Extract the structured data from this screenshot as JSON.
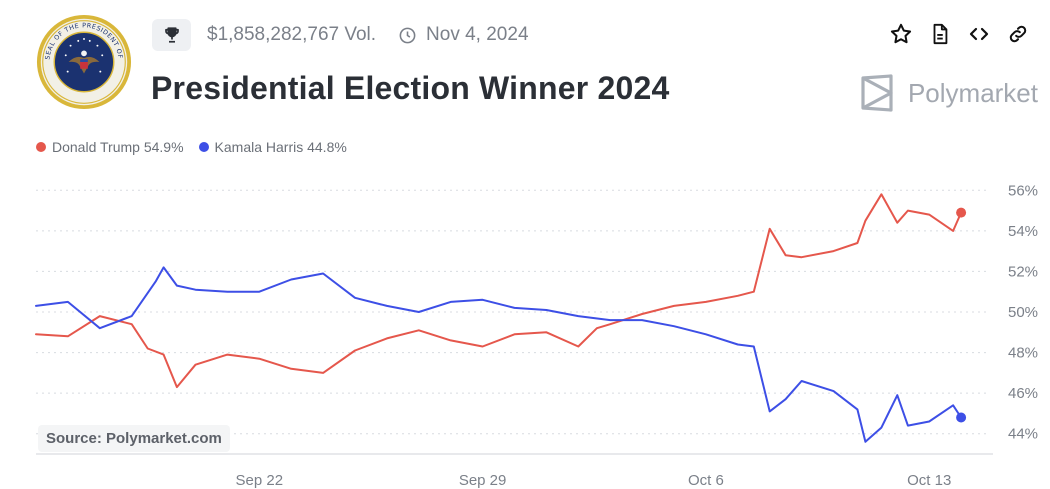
{
  "header": {
    "volume": "$1,858,282,767 Vol.",
    "date": "Nov 4, 2024",
    "title": "Presidential Election Winner 2024",
    "brand": "Polymarket",
    "seal_text": "SEAL OF THE PRESIDENT OF THE UNITED STATES",
    "icons": {
      "trophy": "trophy-icon",
      "clock": "clock-icon",
      "star": "star-icon",
      "document": "document-icon",
      "embed": "code-icon",
      "link": "link-icon"
    }
  },
  "legend": [
    {
      "label": "Donald Trump 54.9%"
    },
    {
      "label": "Kamala Harris 44.8%"
    }
  ],
  "source": "Source: Polymarket.com",
  "chart_data": {
    "type": "line",
    "ylim": [
      43,
      57
    ],
    "yticks": [
      44,
      46,
      48,
      50,
      52,
      54,
      56
    ],
    "ytick_labels": [
      "44%",
      "46%",
      "48%",
      "50%",
      "52%",
      "54%",
      "56%"
    ],
    "xlim": [
      "2024-09-15",
      "2024-10-15"
    ],
    "xticks": [
      "2024-09-22",
      "2024-09-29",
      "2024-10-06",
      "2024-10-13"
    ],
    "xtick_labels": [
      "Sep 22",
      "Sep 29",
      "Oct 6",
      "Oct 13"
    ],
    "grid": true,
    "series": [
      {
        "name": "Donald Trump 54.9%",
        "color": "#e5574c",
        "points": [
          [
            "2024-09-15",
            48.9
          ],
          [
            "2024-09-16",
            48.8
          ],
          [
            "2024-09-17",
            49.8
          ],
          [
            "2024-09-18",
            49.4
          ],
          [
            "2024-09-18T12:00",
            48.2
          ],
          [
            "2024-09-19",
            47.9
          ],
          [
            "2024-09-19T10:00",
            46.3
          ],
          [
            "2024-09-20",
            47.4
          ],
          [
            "2024-09-21",
            47.9
          ],
          [
            "2024-09-22",
            47.7
          ],
          [
            "2024-09-23",
            47.2
          ],
          [
            "2024-09-24",
            47.0
          ],
          [
            "2024-09-25",
            48.1
          ],
          [
            "2024-09-26",
            48.7
          ],
          [
            "2024-09-27",
            49.1
          ],
          [
            "2024-09-28",
            48.6
          ],
          [
            "2024-09-29",
            48.3
          ],
          [
            "2024-09-30",
            48.9
          ],
          [
            "2024-10-01",
            49.0
          ],
          [
            "2024-10-02",
            48.3
          ],
          [
            "2024-10-02T14:00",
            49.2
          ],
          [
            "2024-10-03",
            49.4
          ],
          [
            "2024-10-04",
            49.9
          ],
          [
            "2024-10-05",
            50.3
          ],
          [
            "2024-10-06",
            50.5
          ],
          [
            "2024-10-07",
            50.8
          ],
          [
            "2024-10-07T12:00",
            51.0
          ],
          [
            "2024-10-08",
            54.1
          ],
          [
            "2024-10-08T12:00",
            52.8
          ],
          [
            "2024-10-09",
            52.7
          ],
          [
            "2024-10-10",
            53.0
          ],
          [
            "2024-10-10T18:00",
            53.4
          ],
          [
            "2024-10-11",
            54.5
          ],
          [
            "2024-10-11T12:00",
            55.8
          ],
          [
            "2024-10-12",
            54.4
          ],
          [
            "2024-10-12T08:00",
            55.0
          ],
          [
            "2024-10-13",
            54.8
          ],
          [
            "2024-10-13T18:00",
            54.0
          ],
          [
            "2024-10-14",
            54.9
          ]
        ]
      },
      {
        "name": "Kamala Harris 44.8%",
        "color": "#3d4fe6",
        "points": [
          [
            "2024-09-15",
            50.3
          ],
          [
            "2024-09-16",
            50.5
          ],
          [
            "2024-09-17",
            49.2
          ],
          [
            "2024-09-18",
            49.8
          ],
          [
            "2024-09-18T18:00",
            51.5
          ],
          [
            "2024-09-19",
            52.2
          ],
          [
            "2024-09-19T10:00",
            51.3
          ],
          [
            "2024-09-20",
            51.1
          ],
          [
            "2024-09-21",
            51.0
          ],
          [
            "2024-09-22",
            51.0
          ],
          [
            "2024-09-23",
            51.6
          ],
          [
            "2024-09-24",
            51.9
          ],
          [
            "2024-09-25",
            50.7
          ],
          [
            "2024-09-26",
            50.3
          ],
          [
            "2024-09-27",
            50.0
          ],
          [
            "2024-09-28",
            50.5
          ],
          [
            "2024-09-29",
            50.6
          ],
          [
            "2024-09-30",
            50.2
          ],
          [
            "2024-10-01",
            50.1
          ],
          [
            "2024-10-02",
            49.8
          ],
          [
            "2024-10-03",
            49.6
          ],
          [
            "2024-10-04",
            49.6
          ],
          [
            "2024-10-05",
            49.3
          ],
          [
            "2024-10-06",
            48.9
          ],
          [
            "2024-10-07",
            48.4
          ],
          [
            "2024-10-07T12:00",
            48.3
          ],
          [
            "2024-10-08",
            45.1
          ],
          [
            "2024-10-08T12:00",
            45.7
          ],
          [
            "2024-10-09",
            46.6
          ],
          [
            "2024-10-10",
            46.1
          ],
          [
            "2024-10-10T18:00",
            45.2
          ],
          [
            "2024-10-11",
            43.6
          ],
          [
            "2024-10-11T12:00",
            44.3
          ],
          [
            "2024-10-12",
            45.9
          ],
          [
            "2024-10-12T08:00",
            44.4
          ],
          [
            "2024-10-13",
            44.6
          ],
          [
            "2024-10-13T18:00",
            45.4
          ],
          [
            "2024-10-14",
            44.8
          ]
        ]
      }
    ]
  }
}
